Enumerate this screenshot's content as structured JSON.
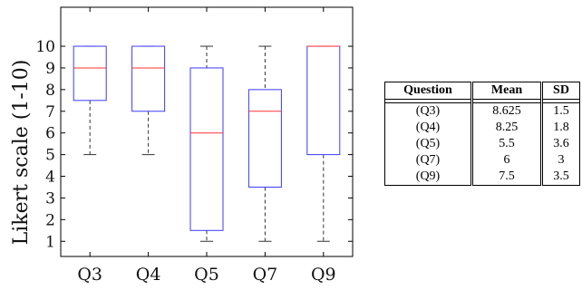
{
  "chart_data": {
    "type": "box",
    "ylabel": "Likert scale (1-10)",
    "ylim": [
      0.3,
      11.8
    ],
    "yticks": [
      1,
      2,
      3,
      4,
      5,
      6,
      7,
      8,
      9,
      10
    ],
    "categories": [
      "Q3",
      "Q4",
      "Q5",
      "Q7",
      "Q9"
    ],
    "boxes": [
      {
        "label": "Q3",
        "min": 5,
        "q1": 7.5,
        "median": 9,
        "q3": 10,
        "max": 10
      },
      {
        "label": "Q4",
        "min": 5,
        "q1": 7,
        "median": 9,
        "q3": 10,
        "max": 10
      },
      {
        "label": "Q5",
        "min": 1,
        "q1": 1.5,
        "median": 6,
        "q3": 9,
        "max": 10
      },
      {
        "label": "Q7",
        "min": 1,
        "q1": 3.5,
        "median": 7,
        "q3": 8,
        "max": 10
      },
      {
        "label": "Q9",
        "min": 1,
        "q1": 5,
        "median": 10,
        "q3": 10,
        "max": 10
      }
    ],
    "colors": {
      "box": "#3b3bff",
      "median": "#ff3030",
      "whisker": "#333333"
    }
  },
  "table": {
    "headers": [
      "Question",
      "Mean",
      "SD"
    ],
    "rows": [
      [
        "(Q3)",
        "8.625",
        "1.5"
      ],
      [
        "(Q4)",
        "8.25",
        "1.8"
      ],
      [
        "(Q5)",
        "5.5",
        "3.6"
      ],
      [
        "(Q7)",
        "6",
        "3"
      ],
      [
        "(Q9)",
        "7.5",
        "3.5"
      ]
    ]
  }
}
